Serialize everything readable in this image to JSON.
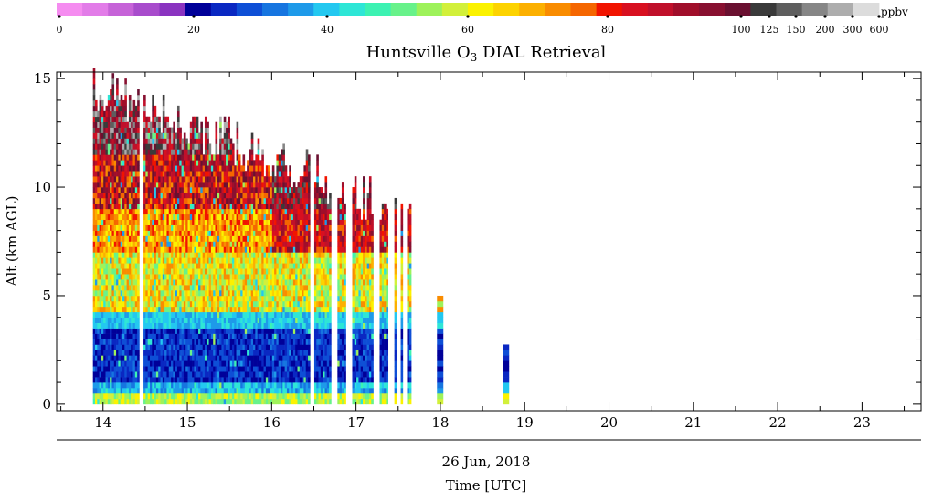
{
  "chart_data": {
    "type": "heatmap",
    "title_main": "Huntsville O",
    "title_sub": "3",
    "title_rest": " DIAL Retrieval",
    "ylabel": "Alt (km AGL)",
    "xlabel_date": "26 Jun, 2018",
    "xlabel": "Time [UTC]",
    "xlim": [
      13.45,
      23.7
    ],
    "ylim": [
      -0.3,
      15.3
    ],
    "x_ticks": [
      "14",
      "15",
      "16",
      "17",
      "18",
      "19",
      "20",
      "21",
      "22",
      "23"
    ],
    "y_ticks": [
      "0",
      "5",
      "10",
      "15"
    ],
    "colorbar": {
      "unit": "ppbv",
      "tick_labels": [
        "0",
        "20",
        "40",
        "60",
        "80",
        "100",
        "125",
        "150",
        "200",
        "300",
        "600"
      ],
      "colors": [
        "#f58cf0",
        "#e27ce8",
        "#c663d8",
        "#a84ccc",
        "#8a33c0",
        "#000099",
        "#0a28c2",
        "#0e4fd6",
        "#1675e0",
        "#1e9ae9",
        "#23c8f0",
        "#2ee6d6",
        "#3cf2b2",
        "#68f28a",
        "#9ef25a",
        "#d2f03a",
        "#fbf200",
        "#fdd300",
        "#fcb000",
        "#f98c00",
        "#f56600",
        "#f11400",
        "#d81020",
        "#c0102a",
        "#a00e2a",
        "#881030",
        "#6a1030",
        "#3a3a3a",
        "#5e5e5e",
        "#868686",
        "#adadad",
        "#dcdcdc"
      ]
    },
    "series": {
      "start_time": 13.88,
      "column_width_hours": 0.025,
      "end_time": 17.66,
      "early_top_km": 14.5,
      "late_top_km": 8.5,
      "gaps": [
        14.44,
        16.46,
        16.73,
        16.91,
        17.23,
        17.41,
        17.5,
        17.57
      ],
      "isolated_profiles": [
        {
          "t": 17.96,
          "top_km": 4.8
        },
        {
          "t": 18.74,
          "top_km": 2.6
        }
      ]
    }
  }
}
